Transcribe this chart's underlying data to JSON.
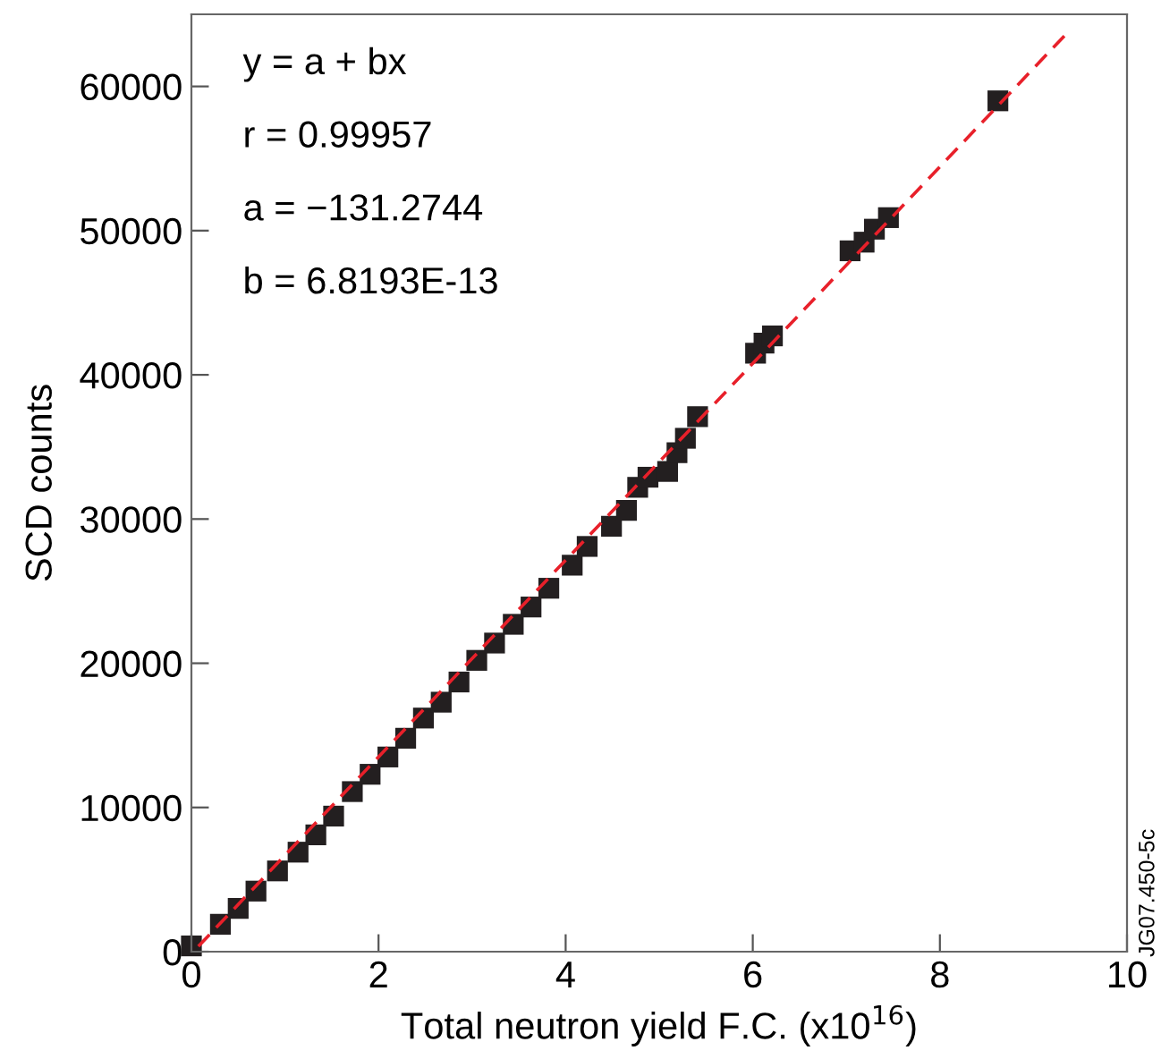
{
  "chart_data": {
    "type": "scatter",
    "xlabel": "Total neutron yield F.C. (x10$^{16}$)",
    "ylabel": "SCD counts",
    "xlim": [
      0,
      10
    ],
    "ylim": [
      0,
      65000
    ],
    "xticks": [
      0,
      2,
      4,
      6,
      8,
      10
    ],
    "yticks": [
      0,
      10000,
      20000,
      30000,
      40000,
      50000,
      60000
    ],
    "grid": false,
    "legend": false,
    "annotations": [
      "y = a + bx",
      "r = 0.99957",
      "a = −131.2744",
      "b = 6.8193E-13",
      "JG07.450-5c"
    ],
    "series": [
      {
        "color": "#231f20",
        "marker": "square",
        "x": [
          0.0,
          0.31,
          0.5,
          0.69,
          0.92,
          1.14,
          1.33,
          1.52,
          1.72,
          1.91,
          2.1,
          2.29,
          2.48,
          2.67,
          2.86,
          3.05,
          3.24,
          3.44,
          3.63,
          3.82,
          4.07,
          4.23,
          4.49,
          4.65,
          4.77,
          4.88,
          5.07,
          5.09,
          5.19,
          5.28,
          5.41,
          6.03,
          6.12,
          6.21,
          7.04,
          7.19,
          7.3,
          7.45,
          8.56,
          8.62
        ],
        "values": [
          400,
          1900,
          3000,
          4200,
          5600,
          6900,
          8100,
          9400,
          11100,
          12300,
          13500,
          14800,
          16200,
          17300,
          18700,
          20200,
          21400,
          22700,
          23900,
          25200,
          26800,
          28100,
          29500,
          30600,
          32200,
          32900,
          null,
          33300,
          34600,
          35600,
          37100,
          41500,
          42200,
          42700,
          48600,
          49200,
          50100,
          50900,
          null,
          59000
        ]
      },
      {
        "type": "line",
        "color": "#e8202a",
        "line_style": "dashed",
        "marker": "none",
        "x": [
          9.33,
          0.02
        ],
        "values": [
          63500,
          0
        ]
      }
    ]
  }
}
